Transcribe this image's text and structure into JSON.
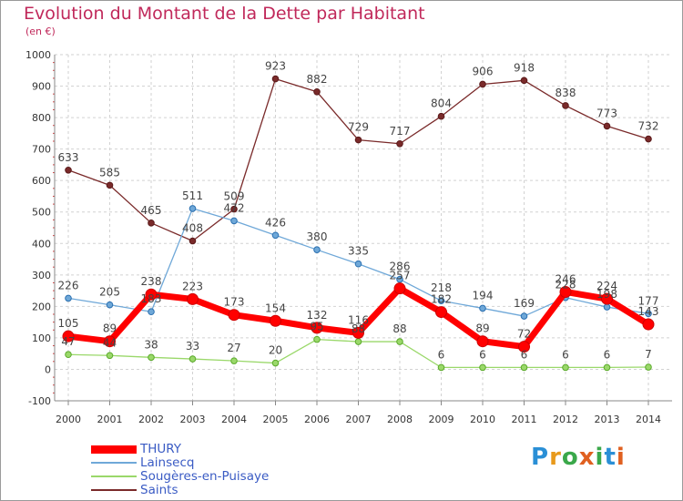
{
  "header": {
    "title": "Evolution du Montant de la Dette par Habitant",
    "subtitle": "(en €)"
  },
  "logo": {
    "letters": [
      "P",
      "r",
      "o",
      "x",
      "i",
      "t",
      "i"
    ],
    "colors": [
      "#2a8fd6",
      "#e89a1c",
      "#3aa84a",
      "#e06020",
      "#3aa84a",
      "#2a8fd6",
      "#e06020"
    ]
  },
  "chart_data": {
    "type": "line",
    "title": "Evolution du Montant de la Dette par Habitant",
    "ylabel": "(en €)",
    "xlabel": "",
    "x": [
      "2000",
      "2001",
      "2002",
      "2003",
      "2004",
      "2005",
      "2006",
      "2007",
      "2008",
      "2009",
      "2010",
      "2011",
      "2012",
      "2013",
      "2014"
    ],
    "yticks": [
      "-100",
      "0",
      "100",
      "200",
      "300",
      "400",
      "500",
      "600",
      "700",
      "800",
      "900",
      "1000"
    ],
    "ylim": [
      -100,
      1000
    ],
    "grid": true,
    "legend_position": "bottom-left",
    "series": [
      {
        "name": "Saints",
        "color": "#7a2a2a",
        "values": [
          633,
          585,
          465,
          408,
          509,
          923,
          882,
          729,
          717,
          804,
          906,
          918,
          838,
          773,
          732
        ],
        "labels": [
          "633",
          "585",
          "465",
          "408",
          "509",
          "923",
          "882",
          "729",
          "717",
          "804",
          "906",
          "918",
          "838",
          "773",
          "732"
        ]
      },
      {
        "name": "Lainsecq",
        "color": "#6fa8d8",
        "values": [
          226,
          205,
          183,
          511,
          472,
          426,
          380,
          335,
          286,
          218,
          194,
          169,
          228,
          198,
          177
        ],
        "labels": [
          "226",
          "205",
          "183",
          "511",
          "472",
          "426",
          "380",
          "335",
          "286",
          "218",
          "194",
          "169",
          "228",
          "198",
          "177"
        ]
      },
      {
        "name": "Sougères-en-Puisaye",
        "color": "#9ad86a",
        "values": [
          47,
          44,
          38,
          33,
          27,
          20,
          95,
          88,
          88,
          6,
          6,
          6,
          6,
          6,
          7
        ],
        "labels": [
          "47",
          "44",
          "38",
          "33",
          "27",
          "20",
          "95",
          "88",
          "88",
          "6",
          "6",
          "6",
          "6",
          "6",
          "7"
        ]
      },
      {
        "name": "THURY",
        "color": "#ff0000",
        "values": [
          105,
          89,
          238,
          223,
          173,
          154,
          132,
          116,
          257,
          182,
          89,
          72,
          246,
          224,
          143
        ],
        "labels": [
          "105",
          "89",
          "238",
          "223",
          "173",
          "154",
          "132",
          "116",
          "257",
          "182",
          "89",
          "72",
          "246",
          "224",
          "143"
        ]
      }
    ]
  }
}
